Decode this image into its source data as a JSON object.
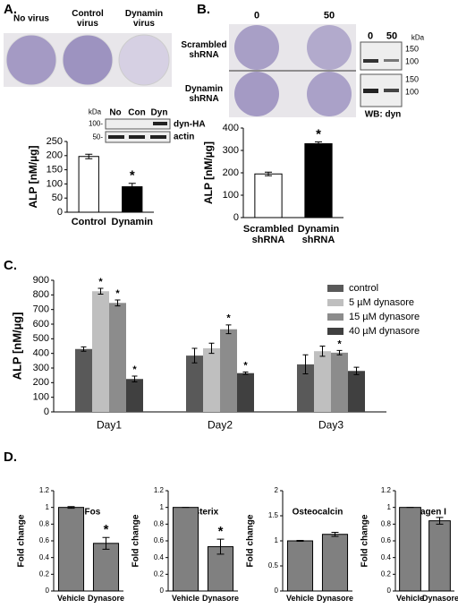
{
  "figure": {
    "panel_labels": [
      "A.",
      "B.",
      "C.",
      "D."
    ],
    "a_dish_labels": [
      "No virus",
      "Control virus",
      "Dynamin virus"
    ],
    "a_blot": {
      "kda": "kDa",
      "markers": [
        "100-",
        "50-"
      ],
      "lanes": [
        "No",
        "Con",
        "Dyn"
      ],
      "bands": [
        "dyn-HA",
        "actin"
      ]
    },
    "b_dish_doses": [
      "0",
      "50"
    ],
    "b_dish_rows": [
      "Scrambled shRNA",
      "Dynamin shRNA"
    ],
    "b_blot": {
      "lanes": [
        "0",
        "50"
      ],
      "kda": "kDa",
      "markers": [
        "150",
        "100",
        "150",
        "100"
      ],
      "caption": "WB: dyn"
    }
  },
  "chart_data": [
    {
      "type": "bar",
      "ylabel": "ALP [nM/µg]",
      "categories": [
        "Control",
        "Dynamin"
      ],
      "values": [
        197,
        90
      ],
      "errors": [
        8,
        12
      ],
      "colors": [
        "#ffffff",
        "#000000"
      ],
      "significance": [
        null,
        "*"
      ],
      "ylim": [
        0,
        250
      ],
      "yticks": [
        0,
        50,
        100,
        150,
        200,
        250
      ]
    },
    {
      "type": "bar",
      "ylabel": "ALP [nM/µg]",
      "categories": [
        "Scrambled shRNA",
        "Dynamin shRNA"
      ],
      "values": [
        195,
        330
      ],
      "errors": [
        8,
        8
      ],
      "colors": [
        "#ffffff",
        "#000000"
      ],
      "significance": [
        null,
        "*"
      ],
      "ylim": [
        0,
        400
      ],
      "yticks": [
        0,
        100,
        200,
        300,
        400
      ]
    },
    {
      "type": "bar",
      "ylabel": "ALP [nM/µg]",
      "categories": [
        "Day1",
        "Day2",
        "Day3"
      ],
      "legend": "right",
      "series": [
        {
          "name": "control",
          "color": "#595959",
          "values": [
            430,
            385,
            325
          ],
          "errors": [
            15,
            50,
            65
          ],
          "significance": [
            null,
            null,
            null
          ]
        },
        {
          "name": "5 µM dynasore",
          "color": "#bfbfbf",
          "values": [
            825,
            435,
            415
          ],
          "errors": [
            20,
            35,
            35
          ],
          "significance": [
            "*",
            null,
            null
          ]
        },
        {
          "name": "15 µM dynasore",
          "color": "#8c8c8c",
          "values": [
            745,
            565,
            405
          ],
          "errors": [
            20,
            30,
            15
          ],
          "significance": [
            "*",
            "*",
            "*"
          ]
        },
        {
          "name": "40 µM dynasore",
          "color": "#404040",
          "values": [
            225,
            265,
            280
          ],
          "errors": [
            20,
            8,
            25
          ],
          "significance": [
            "*",
            "*",
            null
          ]
        }
      ],
      "ylim": [
        0,
        900
      ],
      "yticks": [
        0,
        100,
        200,
        300,
        400,
        500,
        600,
        700,
        800,
        900
      ]
    },
    {
      "type": "bar",
      "title": "c-Fos",
      "ylabel": "Fold change",
      "categories": [
        "Vehicle",
        "Dynasore"
      ],
      "values": [
        1,
        0.57
      ],
      "errors": [
        0.01,
        0.07
      ],
      "color": "#808080",
      "significance": [
        null,
        "*"
      ],
      "ylim": [
        0,
        1.2
      ],
      "yticks": [
        0,
        0.2,
        0.4,
        0.6,
        0.8,
        1,
        1.2
      ]
    },
    {
      "type": "bar",
      "title": "Osterix",
      "ylabel": "Fold change",
      "categories": [
        "Vehicle",
        "Dynasore"
      ],
      "values": [
        1,
        0.53
      ],
      "errors": [
        0,
        0.09
      ],
      "color": "#808080",
      "significance": [
        null,
        "*"
      ],
      "ylim": [
        0,
        1.2
      ],
      "yticks": [
        0,
        0.2,
        0.4,
        0.6,
        0.8,
        1,
        1.2
      ]
    },
    {
      "type": "bar",
      "title": "Osteocalcin",
      "ylabel": "Fold change",
      "categories": [
        "Vehicle",
        "Dynasore"
      ],
      "values": [
        1,
        1.13
      ],
      "errors": [
        0.01,
        0.04
      ],
      "color": "#808080",
      "significance": [
        null,
        null
      ],
      "ylim": [
        0,
        2
      ],
      "yticks": [
        0,
        0.5,
        1,
        1.5,
        2
      ]
    },
    {
      "type": "bar",
      "title": "Collagen I",
      "ylabel": "Fold change",
      "categories": [
        "Vehicle",
        "Dynasore"
      ],
      "values": [
        1,
        0.84
      ],
      "errors": [
        0,
        0.04
      ],
      "color": "#808080",
      "significance": [
        null,
        null
      ],
      "ylim": [
        0,
        1.2
      ],
      "yticks": [
        0,
        0.2,
        0.4,
        0.6,
        0.8,
        1,
        1.2
      ]
    }
  ]
}
